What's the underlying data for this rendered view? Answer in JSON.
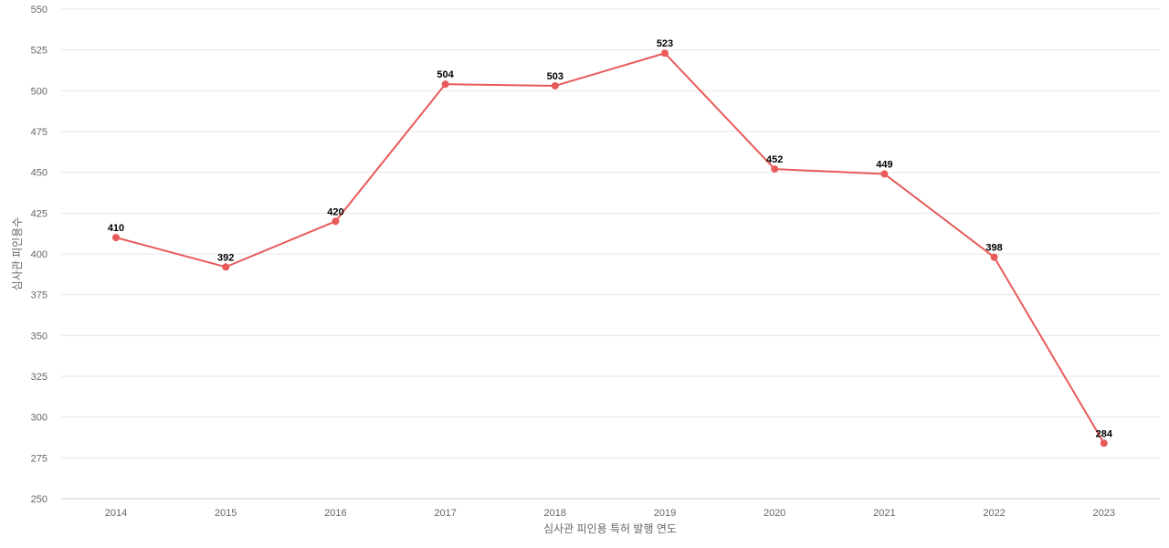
{
  "chart_data": {
    "type": "line",
    "title": "",
    "xlabel": "심사관 피인용 특허 발행 연도",
    "ylabel": "심사관 피인용수",
    "categories": [
      "2014",
      "2015",
      "2016",
      "2017",
      "2018",
      "2019",
      "2020",
      "2021",
      "2022",
      "2023"
    ],
    "series": [
      {
        "values": [
          410,
          392,
          420,
          504,
          503,
          523,
          452,
          449,
          398,
          284
        ],
        "color": "#e85a5a"
      }
    ],
    "ylim": [
      250,
      550
    ],
    "yticks": [
      250,
      275,
      300,
      325,
      350,
      375,
      400,
      425,
      450,
      475,
      500,
      525,
      550
    ],
    "grid": true,
    "data_labels": true,
    "legend": "none"
  }
}
